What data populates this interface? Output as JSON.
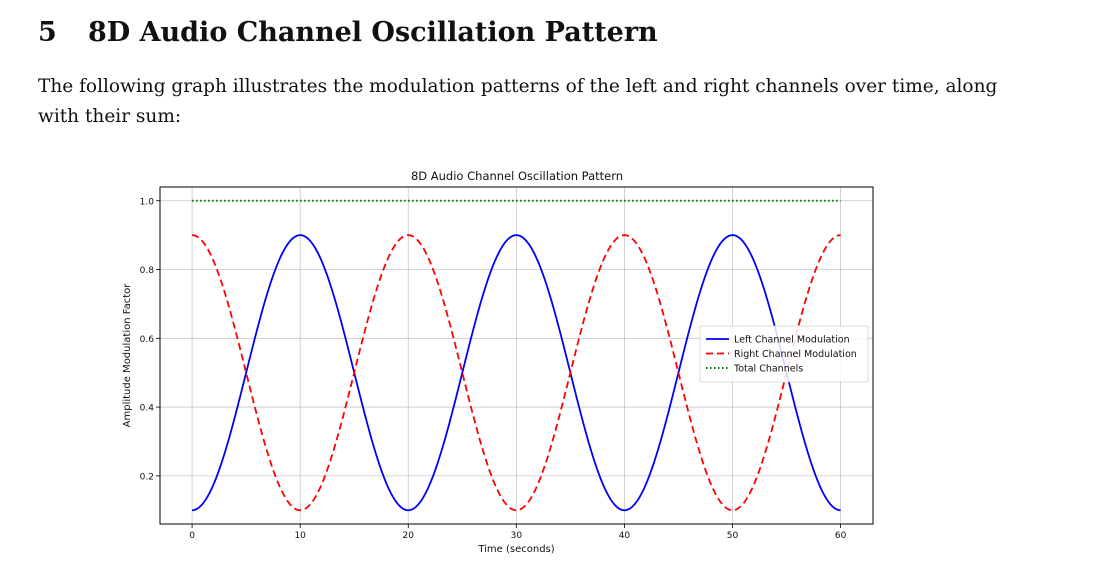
{
  "section": {
    "number": "5",
    "title": "8D Audio Channel Oscillation Pattern"
  },
  "intro_text": "The following graph illustrates the modulation patterns of the left and right channels over time, along with their sum:",
  "chart_data": {
    "type": "line",
    "title": "8D Audio Channel Oscillation Pattern",
    "xlabel": "Time (seconds)",
    "ylabel": "Amplitude Modulation Factor",
    "xlim": [
      -2.97,
      63
    ],
    "ylim": [
      0.06,
      1.04
    ],
    "xticks": [
      0,
      10,
      20,
      30,
      40,
      50,
      60
    ],
    "xtick_labels": [
      "0",
      "10",
      "20",
      "30",
      "40",
      "50",
      "60"
    ],
    "yticks": [
      0.2,
      0.4,
      0.6,
      0.8,
      1.0
    ],
    "ytick_labels": [
      "0.2",
      "0.4",
      "0.6",
      "0.8",
      "1.0"
    ],
    "grid": true,
    "legend_position": "center-right",
    "series": [
      {
        "name": "Left Channel Modulation",
        "color": "#0000ff",
        "style": "solid",
        "x": [
          0,
          2,
          4,
          6,
          8,
          10,
          12,
          14,
          16,
          18,
          20,
          22,
          24,
          26,
          28,
          30,
          32,
          34,
          36,
          38,
          40,
          42,
          44,
          46,
          48,
          50,
          52,
          54,
          56,
          58,
          60
        ],
        "values": [
          0.1,
          0.176,
          0.376,
          0.624,
          0.824,
          0.9,
          0.824,
          0.624,
          0.376,
          0.176,
          0.1,
          0.176,
          0.376,
          0.624,
          0.824,
          0.9,
          0.824,
          0.624,
          0.376,
          0.176,
          0.1,
          0.176,
          0.376,
          0.624,
          0.824,
          0.9,
          0.824,
          0.624,
          0.376,
          0.176,
          0.1
        ]
      },
      {
        "name": "Right Channel Modulation",
        "color": "#ff0000",
        "style": "dashed",
        "x": [
          0,
          2,
          4,
          6,
          8,
          10,
          12,
          14,
          16,
          18,
          20,
          22,
          24,
          26,
          28,
          30,
          32,
          34,
          36,
          38,
          40,
          42,
          44,
          46,
          48,
          50,
          52,
          54,
          56,
          58,
          60
        ],
        "values": [
          0.9,
          0.824,
          0.624,
          0.376,
          0.176,
          0.1,
          0.176,
          0.376,
          0.624,
          0.824,
          0.9,
          0.824,
          0.624,
          0.376,
          0.176,
          0.1,
          0.176,
          0.376,
          0.624,
          0.824,
          0.9,
          0.824,
          0.624,
          0.376,
          0.176,
          0.1,
          0.176,
          0.376,
          0.624,
          0.824,
          0.9
        ]
      },
      {
        "name": "Total Channels",
        "color": "#008000",
        "style": "dotted",
        "x": [
          0,
          60
        ],
        "values": [
          1.0,
          1.0
        ]
      }
    ]
  }
}
